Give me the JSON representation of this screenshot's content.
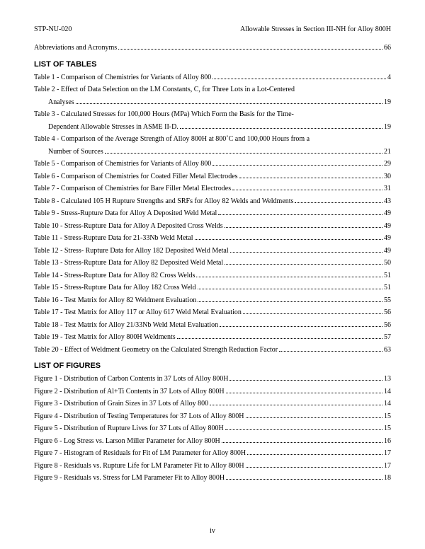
{
  "header": {
    "left": "STP-NU-020",
    "right": "Allowable Stresses in Section III-NH for Alloy 800H"
  },
  "pre": [
    {
      "text": "Abbreviations and Acronyms",
      "page": "66"
    }
  ],
  "headings": {
    "tables": "LIST OF TABLES",
    "figures": "LIST OF FIGURES"
  },
  "tables": [
    {
      "lines": [
        "Table 1 - Comparison of Chemistries for Variants of Alloy 800"
      ],
      "page": "4"
    },
    {
      "lines": [
        "Table 2 - Effect of Data Selection on the LM Constants, C, for Three Lots in a Lot-Centered",
        "Analyses"
      ],
      "page": "19"
    },
    {
      "lines": [
        "Table 3 - Calculated Stresses for 100,000 Hours (MPa) Which Form the Basis for the Time-",
        "Dependent Allowable Stresses in ASME II-D."
      ],
      "page": "19"
    },
    {
      "lines": [
        "Table 4 - Comparison of the Average Strength of Alloy 800H at 800˚C and 100,000 Hours from a",
        "Number of Sources"
      ],
      "page": "21"
    },
    {
      "lines": [
        "Table 5 - Comparison of Chemistries for Variants of Alloy 800"
      ],
      "page": "29"
    },
    {
      "lines": [
        "Table 6 - Comparison of Chemistries for Coated Filler Metal Electrodes"
      ],
      "page": "30"
    },
    {
      "lines": [
        "Table 7 - Comparison of Chemistries for Bare Filler Metal Electrodes"
      ],
      "page": "31"
    },
    {
      "lines": [
        "Table 8 - Calculated 105 H Rupture Strengths and SRFs for Alloy 82 Welds and Weldments"
      ],
      "page": "43"
    },
    {
      "lines": [
        "Table 9 - Stress-Rupture Data for Alloy A Deposited Weld Metal"
      ],
      "page": "49"
    },
    {
      "lines": [
        "Table 10 - Stress-Rupture Data for Alloy A Deposited Cross Welds"
      ],
      "page": "49"
    },
    {
      "lines": [
        "Table 11 - Stress-Rupture Data for 21-33Nb Weld Metal"
      ],
      "page": "49"
    },
    {
      "lines": [
        "Table 12 - Stress- Rupture Data for Alloy 182 Deposited Weld Metal"
      ],
      "page": "49"
    },
    {
      "lines": [
        "Table 13 - Stress-Rupture Data for Alloy 82 Deposited Weld Metal"
      ],
      "page": "50"
    },
    {
      "lines": [
        "Table 14 - Stress-Rupture Data for Alloy 82 Cross Welds"
      ],
      "page": "51"
    },
    {
      "lines": [
        "Table 15 - Stress-Rupture Data for Alloy 182 Cross Weld"
      ],
      "page": "51"
    },
    {
      "lines": [
        "Table 16 - Test Matrix for Alloy 82 Weldment Evaluation"
      ],
      "page": "55"
    },
    {
      "lines": [
        "Table 17 - Test Matrix for Alloy 117 or Alloy 617 Weld Metal Evaluation"
      ],
      "page": "56"
    },
    {
      "lines": [
        "Table 18 - Test Matrix for Alloy 21/33Nb Weld Metal Evaluation"
      ],
      "page": "56"
    },
    {
      "lines": [
        "Table 19 - Test Matrix for Alloy 800H Weldments"
      ],
      "page": "57"
    },
    {
      "lines": [
        "Table 20 - Effect of Weldment Geometry on the Calculated Strength Reduction Factor"
      ],
      "page": "63"
    }
  ],
  "figures": [
    {
      "lines": [
        "Figure 1 - Distribution of Carbon Contents in 37 Lots of Alloy 800H"
      ],
      "page": "13"
    },
    {
      "lines": [
        "Figure 2 - Distribution of Al+Ti Contents in 37 Lots of Alloy 800H"
      ],
      "page": "14"
    },
    {
      "lines": [
        "Figure 3 - Distribution of Grain Sizes in 37 Lots of Alloy 800"
      ],
      "page": "14"
    },
    {
      "lines": [
        "Figure 4 - Distribution of Testing Temperatures for 37 Lots of Alloy 800H"
      ],
      "page": "15"
    },
    {
      "lines": [
        "Figure 5 - Distribution of Rupture Lives for 37 Lots of Alloy 800H"
      ],
      "page": "15"
    },
    {
      "lines": [
        "Figure 6 - Log Stress vs. Larson Miller Parameter for Alloy 800H"
      ],
      "page": "16"
    },
    {
      "lines": [
        "Figure 7 - Histogram of Residuals for Fit of LM Parameter for Alloy 800H"
      ],
      "page": "17"
    },
    {
      "lines": [
        "Figure 8 - Residuals vs. Rupture Life for LM Parameter Fit to Alloy 800H"
      ],
      "page": "17"
    },
    {
      "lines": [
        "Figure 9 - Residuals vs. Stress for LM Parameter Fit to Alloy 800H"
      ],
      "page": "18"
    }
  ],
  "footer": "iv"
}
